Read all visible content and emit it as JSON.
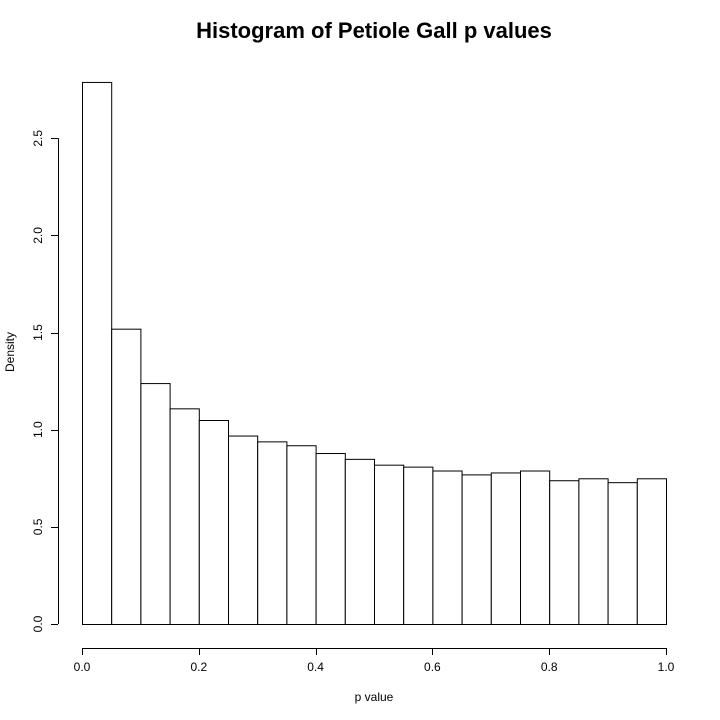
{
  "chart_data": {
    "type": "bar",
    "title": "Histogram of Petiole Gall p values",
    "xlabel": "p value",
    "ylabel": "Density",
    "xlim": [
      0,
      1
    ],
    "ylim": [
      0,
      2.8
    ],
    "bin_width": 0.05,
    "bin_starts": [
      0.0,
      0.05,
      0.1,
      0.15,
      0.2,
      0.25,
      0.3,
      0.35,
      0.4,
      0.45,
      0.5,
      0.55,
      0.6,
      0.65,
      0.7,
      0.75,
      0.8,
      0.85,
      0.9,
      0.95
    ],
    "values": [
      2.79,
      1.52,
      1.24,
      1.11,
      1.05,
      0.97,
      0.94,
      0.92,
      0.88,
      0.85,
      0.82,
      0.81,
      0.79,
      0.77,
      0.78,
      0.79,
      0.74,
      0.75,
      0.73,
      0.75
    ],
    "x_ticks": [
      0,
      0.2,
      0.4,
      0.6,
      0.8,
      1.0
    ],
    "x_tick_labels": [
      "0.0",
      "0.2",
      "0.4",
      "0.6",
      "0.8",
      "1.0"
    ],
    "y_ticks": [
      0,
      0.5,
      1.0,
      1.5,
      2.0,
      2.5
    ],
    "y_tick_labels": [
      "0.0",
      "0.5",
      "1.0",
      "1.5",
      "2.0",
      "2.5"
    ],
    "grid": false,
    "legend": "none",
    "bar_fill": "#ffffff",
    "bar_stroke": "#000000"
  }
}
